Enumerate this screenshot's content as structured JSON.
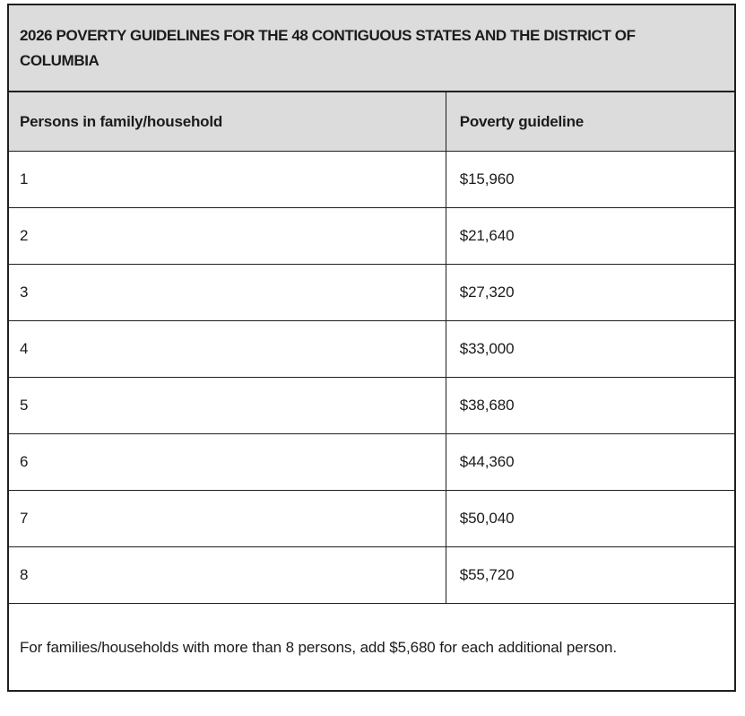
{
  "page": {
    "title": "2026 POVERTY GUIDELINES FOR THE 48 CONTIGUOUS STATES AND THE DISTRICT OF COLUMBIA",
    "columns": {
      "persons": "Persons in family/household",
      "guideline": "Poverty guideline"
    },
    "rows": [
      {
        "persons": "1",
        "guideline": "$15,960"
      },
      {
        "persons": "2",
        "guideline": "$21,640"
      },
      {
        "persons": "3",
        "guideline": "$27,320"
      },
      {
        "persons": "4",
        "guideline": "$33,000"
      },
      {
        "persons": "5",
        "guideline": "$38,680"
      },
      {
        "persons": "6",
        "guideline": "$44,360"
      },
      {
        "persons": "7",
        "guideline": "$50,040"
      },
      {
        "persons": "8",
        "guideline": "$55,720"
      }
    ],
    "footnote": "For families/households with more than 8 persons, add $5,680 for each additional person.",
    "colors": {
      "band_background": "#dcdcdc",
      "border": "#1f1f1f",
      "text": "#1b1b1b"
    }
  }
}
